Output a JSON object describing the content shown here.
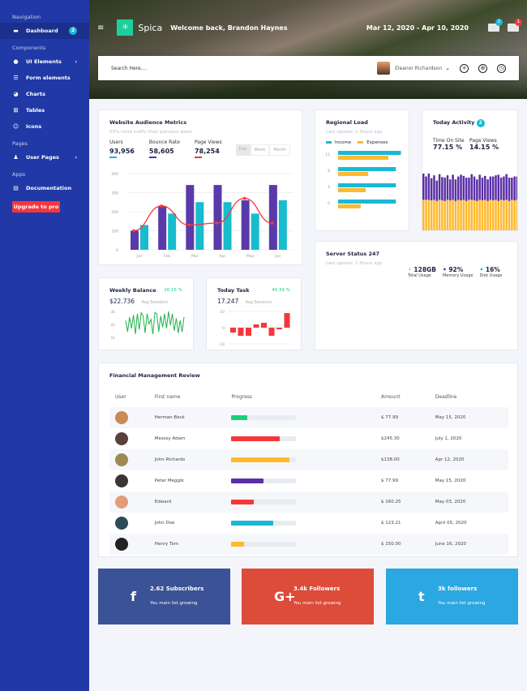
{
  "sidebar": {
    "sections": [
      "Navigation",
      "Components",
      "Pages",
      "Apps"
    ],
    "items": [
      {
        "label": "Dashboard",
        "icon": "monitor-icon",
        "badge": "2"
      },
      {
        "label": "UI Elements",
        "icon": "palette-icon"
      },
      {
        "label": "Form elements",
        "icon": "list-icon"
      },
      {
        "label": "Charts",
        "icon": "pie-chart-icon"
      },
      {
        "label": "Tables",
        "icon": "grid-icon"
      },
      {
        "label": "Icons",
        "icon": "smile-icon"
      },
      {
        "label": "User Pages",
        "icon": "user-icon"
      },
      {
        "label": "Documentation",
        "icon": "book-icon"
      }
    ],
    "upgrade": "Upgrade to pro",
    "color": "#2039a6"
  },
  "header": {
    "brand": "Spica",
    "welcome": "Welcome back, Brandon Haynes",
    "date_range": "Mar 12, 2020 - Apr 10, 2020",
    "notif_badge": "2",
    "mail_badge": "1"
  },
  "search": {
    "placeholder": "Search Here....",
    "user": "Eleanor Richardson"
  },
  "audience": {
    "title": "Website Audience Metrics",
    "subtitle": "25% more traffic than previous week",
    "stats": [
      {
        "label": "Users",
        "value": "93,956",
        "color": "#19b9d4"
      },
      {
        "label": "Bounce Rate",
        "value": "58,605",
        "color": "#5a2ea6"
      },
      {
        "label": "Page Views",
        "value": "78,254",
        "color": "#f6363c"
      }
    ],
    "ranges": [
      "Day",
      "Week",
      "Month"
    ]
  },
  "regional": {
    "title": "Regional Load",
    "subtitle": "Last update: 2 Hours ago",
    "legend": [
      "Income",
      "Expenses"
    ]
  },
  "activity": {
    "title": "Today Activity",
    "badge": "2",
    "stats": [
      {
        "label": "Time On Site",
        "value": "77.15 %"
      },
      {
        "label": "Page Views",
        "value": "14.15 %"
      }
    ]
  },
  "server": {
    "title": "Server Status 247",
    "subtitle": "Last update: 2 Hours ago",
    "stats": [
      {
        "value": "128GB",
        "label": "Total Usage",
        "color": "#cccccc"
      },
      {
        "value": "92%",
        "label": "Memory Usage",
        "color": "#5a2ea6"
      },
      {
        "value": "16%",
        "label": "Disk Usage",
        "color": "#19b9d4"
      }
    ]
  },
  "weekly": {
    "title": "Weekly Balance",
    "pct": "20.15 %",
    "value": "$22.736",
    "sub": "Avg Sessions"
  },
  "task": {
    "title": "Today Task",
    "pct": "45.39 %",
    "value": "17.247",
    "sub": "Avg Sessions"
  },
  "financial": {
    "title": "Financial Management Review",
    "columns": [
      "User",
      "First name",
      "Progress",
      "Amount",
      "Deadline"
    ],
    "rows": [
      {
        "name": "Herman Beck",
        "progress": 25,
        "color": "#1ccf7c",
        "amount": "$ 77.99",
        "deadline": "May 15, 2020"
      },
      {
        "name": "Messsy Adam",
        "progress": 75,
        "color": "#f6363c",
        "amount": "$245.30",
        "deadline": "July 1, 2020"
      },
      {
        "name": "John Richards",
        "progress": 90,
        "color": "#fdb92f",
        "amount": "$138.00",
        "deadline": "Apr 12, 2020"
      },
      {
        "name": "Peter Meggik",
        "progress": 50,
        "color": "#5a2ea6",
        "amount": "$ 77.99",
        "deadline": "May 15, 2020"
      },
      {
        "name": "Edward",
        "progress": 35,
        "color": "#f6363c",
        "amount": "$ 160.25",
        "deadline": "May 03, 2020"
      },
      {
        "name": "John Doe",
        "progress": 65,
        "color": "#19b9d4",
        "amount": "$ 123.21",
        "deadline": "April 05, 2020"
      },
      {
        "name": "Henry Tom",
        "progress": 20,
        "color": "#fdb92f",
        "amount": "$ 150.00",
        "deadline": "June 16, 2020"
      }
    ]
  },
  "social": [
    {
      "icon": "facebook-icon",
      "glyph": "f",
      "title": "2.62 Subscribers",
      "sub": "You main list growing",
      "color": "#3b5297"
    },
    {
      "icon": "google-plus-icon",
      "glyph": "G+",
      "title": "3.4k Followers",
      "sub": "You main list growing",
      "color": "#dd4b39"
    },
    {
      "icon": "twitter-icon",
      "glyph": "t",
      "title": "3k followers",
      "sub": "You main list growing",
      "color": "#2ba7e2"
    }
  ],
  "chart_data": [
    {
      "type": "bar",
      "categories": [
        "Jan",
        "Feb",
        "Mar",
        "Apr",
        "May",
        "Jun"
      ],
      "ylim": [
        0,
        400
      ],
      "yticks": [
        0,
        100,
        200,
        300,
        400
      ],
      "series": [
        {
          "values": [
            100,
            230,
            340,
            340,
            260,
            340
          ],
          "color": "#5a3aaa"
        },
        {
          "values": [
            130,
            190,
            250,
            250,
            190,
            260
          ],
          "color": "#19bccc"
        },
        {
          "type": "line",
          "values": [
            100,
            230,
            130,
            140,
            270,
            140
          ],
          "color": "#f6363c"
        }
      ]
    },
    {
      "type": "bar",
      "orientation": "horizontal",
      "categories": [
        "12",
        "8",
        "4",
        "0"
      ],
      "series": [
        {
          "name": "Income",
          "values": [
            12.5,
            11.5,
            11.5,
            11.5
          ],
          "color": "#19b9d4"
        },
        {
          "name": "Expenses",
          "values": [
            10,
            6,
            5.5,
            4.5
          ],
          "color": "#fdb92f"
        }
      ]
    },
    {
      "type": "bar",
      "stacked": true,
      "series": [
        {
          "values": [
            55,
            55,
            55,
            54,
            55,
            53,
            55,
            54,
            53,
            55,
            54,
            55,
            53,
            55,
            54,
            55,
            53,
            55,
            55,
            54,
            53,
            55,
            54,
            55,
            53,
            55,
            54,
            55,
            53,
            55,
            54,
            55,
            53,
            55,
            54,
            55
          ],
          "color": "#fdb92f"
        },
        {
          "values": [
            45,
            40,
            45,
            38,
            42,
            35,
            44,
            40,
            40,
            42,
            36,
            43,
            37,
            40,
            44,
            41,
            40,
            38,
            44,
            41,
            37,
            43,
            39,
            41,
            37,
            40,
            41,
            42,
            45,
            38,
            41,
            44,
            40,
            38,
            41,
            40
          ],
          "color": "#5a2ea6"
        }
      ]
    },
    {
      "type": "line",
      "yticks": [
        "1k",
        "2k",
        "3k"
      ],
      "values": [
        2.2,
        1.2,
        2.5,
        1.5,
        2.7,
        1.0,
        2.8,
        1.4,
        2.9,
        2.6,
        1.1,
        2.8,
        1.9,
        2.3,
        1.0,
        2.9,
        2.8,
        1.2,
        2.6,
        1.6,
        2.8,
        1.5,
        3.0,
        1.8,
        2.8,
        1.3,
        2.4,
        1.1,
        2.2,
        1.2,
        2.5
      ],
      "color": "#22b14c"
    },
    {
      "type": "bar",
      "ylim": [
        -10,
        10
      ],
      "yticks": [
        "10",
        "0",
        "-10"
      ],
      "values": [
        -3,
        -5,
        -5,
        2,
        3,
        -5,
        -1,
        9
      ],
      "color": "#f6363c"
    }
  ]
}
